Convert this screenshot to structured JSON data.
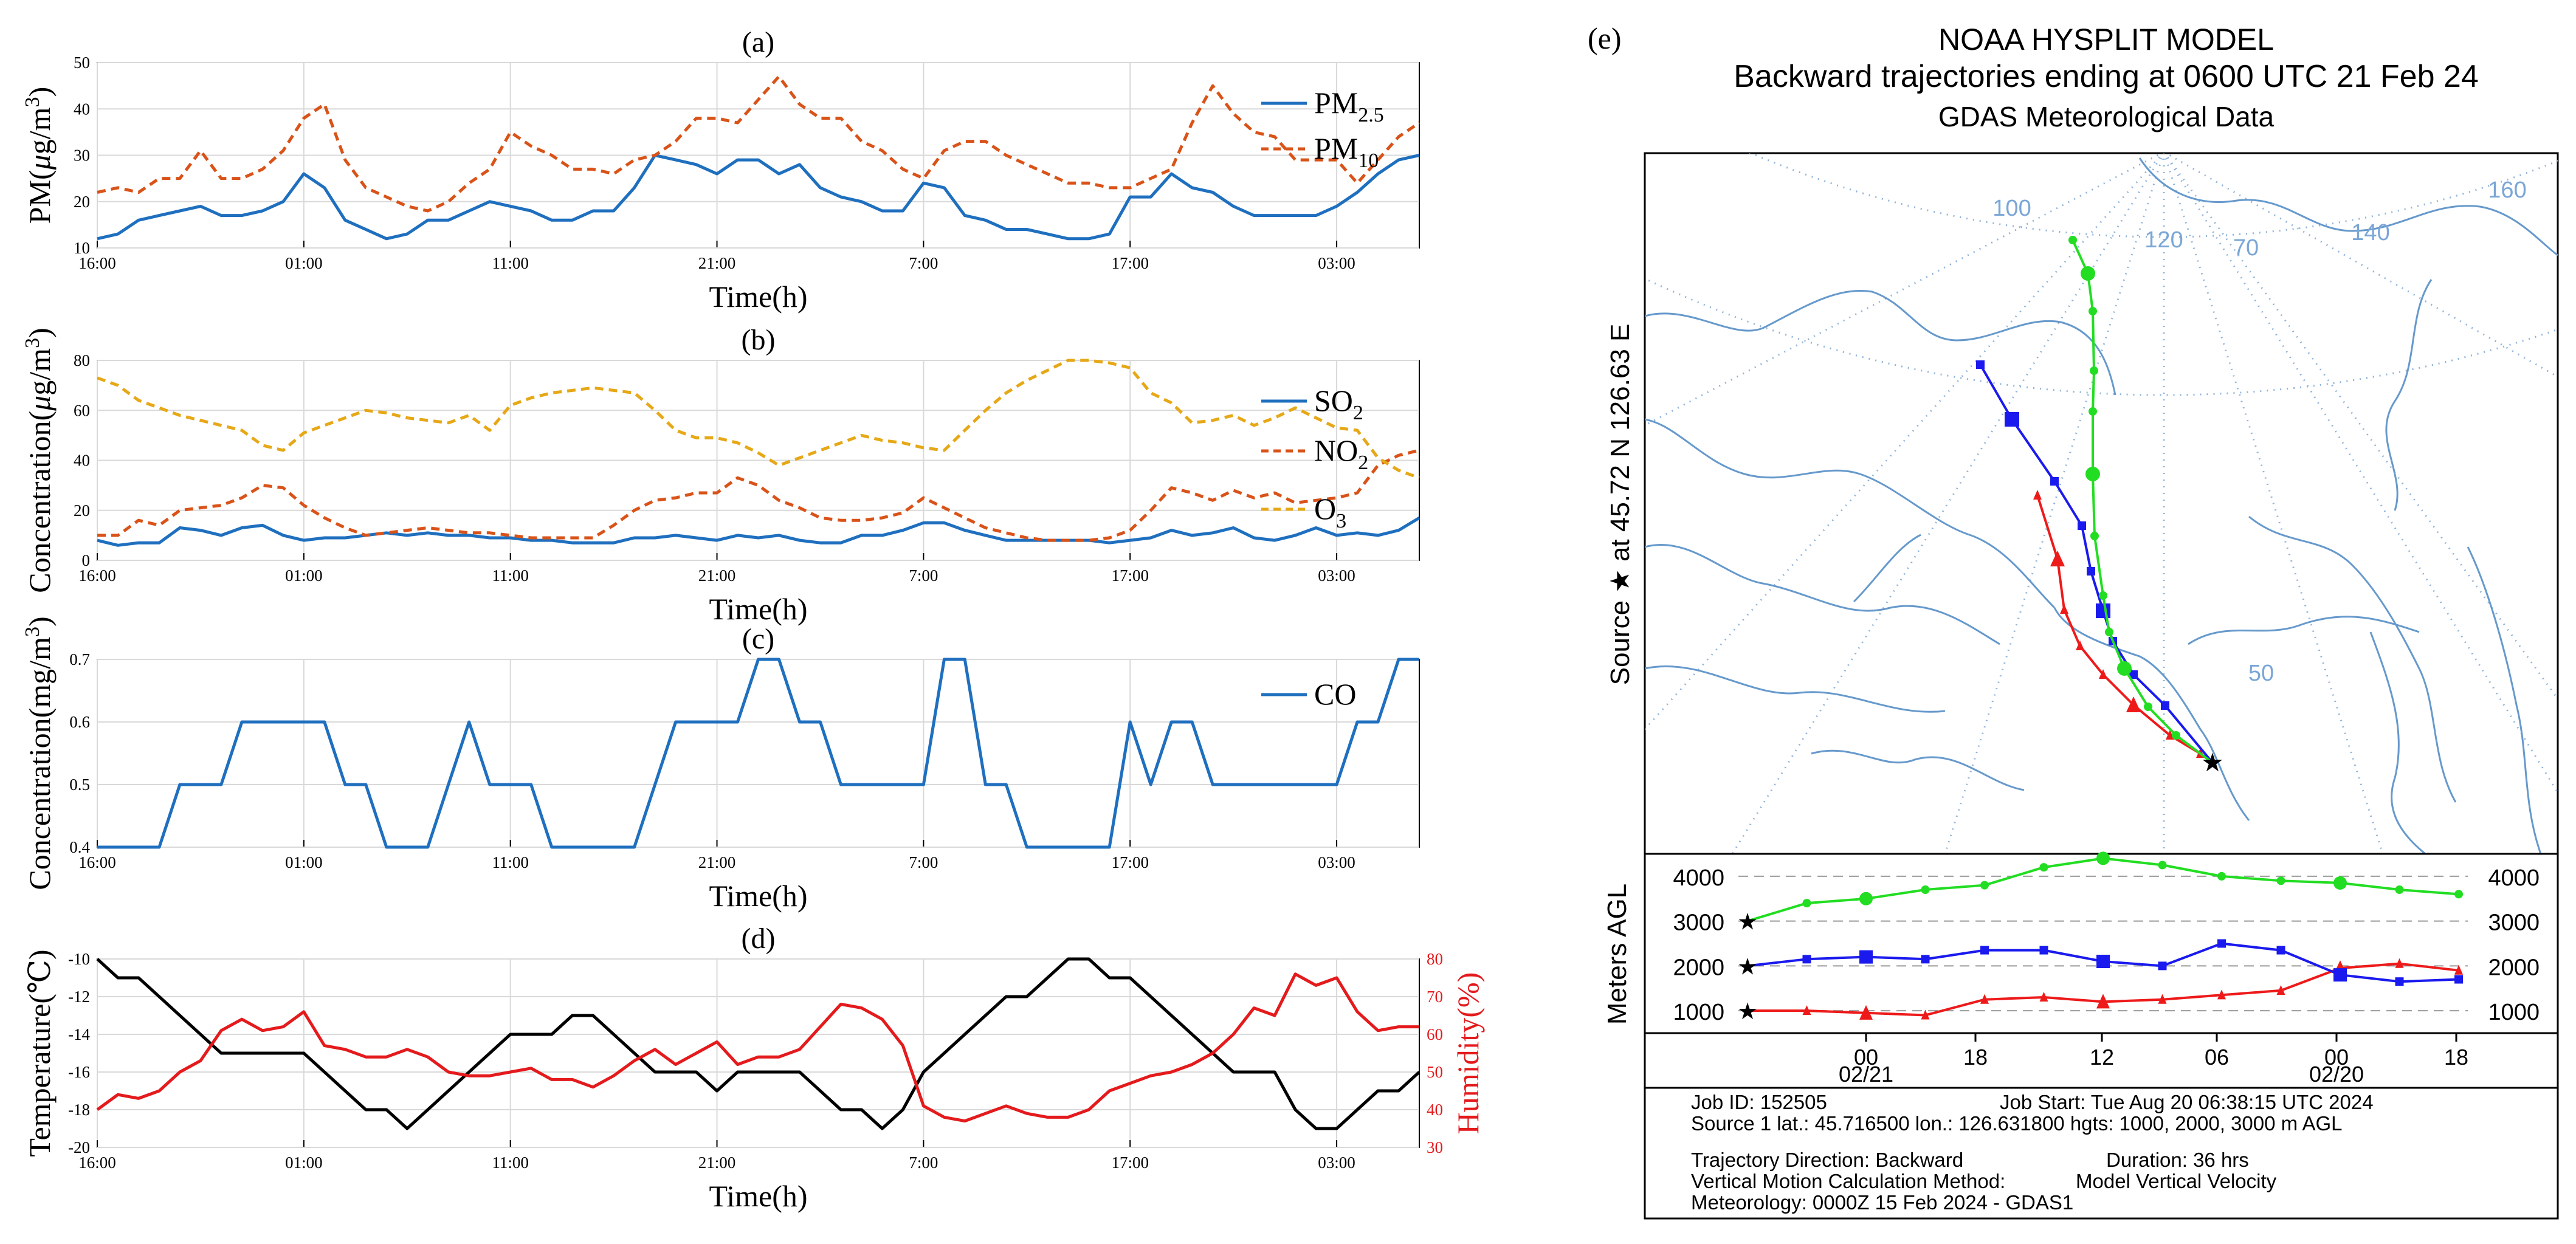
{
  "colors": {
    "blue": "#1f6fbf",
    "orange": "#d95319",
    "gold": "#e6a817",
    "black": "#000000",
    "red": "#e41a1c",
    "grid": "#d9d9d9",
    "green": "#22dd22",
    "trajBlue": "#1a1aee",
    "trajRed": "#ee1a1a",
    "map": "#6699cc"
  },
  "time_ticks": [
    "16:00",
    "01:00",
    "11:00",
    "21:00",
    "7:00",
    "17:00",
    "03:00"
  ],
  "chart_data": [
    {
      "id": "a",
      "type": "line",
      "panel_label": "(a)",
      "xlabel": "Time(h)",
      "ylabel": "PM(μg/m³)",
      "ylabel_parts": [
        "PM(",
        "μ",
        "g/m",
        "3",
        ")"
      ],
      "ylim": [
        10,
        50
      ],
      "yticks": [
        "10",
        "20",
        "30",
        "40",
        "50"
      ],
      "xticks": [
        "16:00",
        "01:00",
        "11:00",
        "21:00",
        "7:00",
        "17:00",
        "03:00"
      ],
      "series": [
        {
          "name": "PM2.5",
          "legend_base": "PM",
          "legend_sub": "2.5",
          "color": "#1f6fbf",
          "dash": "",
          "values": [
            12,
            13,
            16,
            17,
            18,
            19,
            17,
            17,
            18,
            20,
            26,
            23,
            16,
            14,
            12,
            13,
            16,
            16,
            18,
            20,
            19,
            18,
            16,
            16,
            18,
            18,
            23,
            30,
            29,
            28,
            26,
            29,
            29,
            26,
            28,
            23,
            21,
            20,
            18,
            18,
            24,
            23,
            17,
            16,
            14,
            14,
            13,
            12,
            12,
            13,
            21,
            21,
            26,
            23,
            22,
            19,
            17,
            17,
            17,
            17,
            19,
            22,
            26,
            29,
            30
          ]
        },
        {
          "name": "PM10",
          "legend_base": "PM",
          "legend_sub": "10",
          "color": "#d95319",
          "dash": "14,9",
          "values": [
            22,
            23,
            22,
            25,
            25,
            31,
            25,
            25,
            27,
            31,
            38,
            41,
            29,
            23,
            21,
            19,
            18,
            20,
            24,
            27,
            35,
            32,
            30,
            27,
            27,
            26,
            29,
            30,
            33,
            38,
            38,
            37,
            42,
            47,
            41,
            38,
            38,
            33,
            31,
            27,
            25,
            31,
            33,
            33,
            30,
            28,
            26,
            24,
            24,
            23,
            23,
            25,
            27,
            37,
            45,
            39,
            35,
            34,
            29,
            29,
            29,
            24,
            29,
            34,
            37
          ]
        }
      ]
    },
    {
      "id": "b",
      "type": "line",
      "panel_label": "(b)",
      "xlabel": "Time(h)",
      "ylabel": "Concentration(μg/m³)",
      "ylabel_parts": [
        "Concentration(",
        "μ",
        "g/m",
        "3",
        ")"
      ],
      "ylim": [
        0,
        80
      ],
      "yticks": [
        "0",
        "20",
        "40",
        "60",
        "80"
      ],
      "xticks": [
        "16:00",
        "01:00",
        "11:00",
        "21:00",
        "7:00",
        "17:00",
        "03:00"
      ],
      "series": [
        {
          "name": "SO2",
          "legend_base": "SO",
          "legend_sub": "2",
          "color": "#1f6fbf",
          "dash": "",
          "values": [
            8,
            6,
            7,
            7,
            13,
            12,
            10,
            13,
            14,
            10,
            8,
            9,
            9,
            10,
            11,
            10,
            11,
            10,
            10,
            9,
            9,
            8,
            8,
            7,
            7,
            7,
            9,
            9,
            10,
            9,
            8,
            10,
            9,
            10,
            8,
            7,
            7,
            10,
            10,
            12,
            15,
            15,
            12,
            10,
            8,
            8,
            8,
            8,
            8,
            7,
            8,
            9,
            12,
            10,
            11,
            13,
            9,
            8,
            10,
            13,
            10,
            11,
            10,
            12,
            17
          ]
        },
        {
          "name": "NO2",
          "legend_base": "NO",
          "legend_sub": "2",
          "color": "#d95319",
          "dash": "14,9",
          "values": [
            10,
            10,
            16,
            14,
            20,
            21,
            22,
            25,
            30,
            29,
            22,
            17,
            13,
            10,
            11,
            12,
            13,
            12,
            11,
            11,
            10,
            9,
            9,
            9,
            9,
            14,
            20,
            24,
            25,
            27,
            27,
            33,
            30,
            24,
            21,
            17,
            16,
            16,
            17,
            19,
            25,
            21,
            17,
            13,
            11,
            9,
            8,
            8,
            8,
            9,
            12,
            20,
            29,
            27,
            24,
            28,
            25,
            27,
            23,
            24,
            25,
            27,
            38,
            42,
            44
          ]
        },
        {
          "name": "O3",
          "legend_base": "O",
          "legend_sub": "3",
          "color": "#e6a817",
          "dash": "14,9",
          "values": [
            73,
            70,
            64,
            61,
            58,
            56,
            54,
            52,
            46,
            44,
            51,
            54,
            57,
            60,
            59,
            57,
            56,
            55,
            58,
            52,
            62,
            65,
            67,
            68,
            69,
            68,
            67,
            60,
            52,
            49,
            49,
            47,
            43,
            38,
            41,
            44,
            47,
            50,
            48,
            47,
            45,
            44,
            52,
            60,
            67,
            72,
            76,
            80,
            80,
            79,
            77,
            67,
            63,
            55,
            56,
            58,
            54,
            57,
            61,
            57,
            53,
            52,
            41,
            36,
            33
          ]
        }
      ]
    },
    {
      "id": "c",
      "type": "line",
      "panel_label": "(c)",
      "xlabel": "Time(h)",
      "ylabel": "Concentration(mg/m³)",
      "ylabel_parts": [
        "Concentration(mg/m",
        "3",
        ")"
      ],
      "ylim": [
        0.4,
        0.7
      ],
      "yticks": [
        "0.4",
        "0.5",
        "0.6",
        "0.7"
      ],
      "xticks": [
        "16:00",
        "01:00",
        "11:00",
        "21:00",
        "7:00",
        "17:00",
        "03:00"
      ],
      "series": [
        {
          "name": "CO",
          "legend_base": "CO",
          "legend_sub": "",
          "color": "#1f6fbf",
          "dash": "",
          "values": [
            0.4,
            0.4,
            0.4,
            0.4,
            0.5,
            0.5,
            0.5,
            0.6,
            0.6,
            0.6,
            0.6,
            0.6,
            0.5,
            0.5,
            0.4,
            0.4,
            0.4,
            0.5,
            0.6,
            0.5,
            0.5,
            0.5,
            0.4,
            0.4,
            0.4,
            0.4,
            0.4,
            0.5,
            0.6,
            0.6,
            0.6,
            0.6,
            0.7,
            0.7,
            0.6,
            0.6,
            0.5,
            0.5,
            0.5,
            0.5,
            0.5,
            0.7,
            0.7,
            0.5,
            0.5,
            0.4,
            0.4,
            0.4,
            0.4,
            0.4,
            0.6,
            0.5,
            0.6,
            0.6,
            0.5,
            0.5,
            0.5,
            0.5,
            0.5,
            0.5,
            0.5,
            0.6,
            0.6,
            0.7,
            0.7
          ]
        }
      ]
    },
    {
      "id": "d",
      "type": "line",
      "panel_label": "(d)",
      "xlabel": "Time(h)",
      "ylabel": "Temperature(℃)",
      "ylabel_right": "Humidity(%)",
      "ylim": [
        -20,
        -10
      ],
      "yticks": [
        "-20",
        "-18",
        "-16",
        "-14",
        "-12",
        "-10"
      ],
      "ylim_right": [
        30,
        80
      ],
      "yticks_right": [
        "30",
        "40",
        "50",
        "60",
        "70",
        "80"
      ],
      "xticks": [
        "16:00",
        "01:00",
        "11:00",
        "21:00",
        "7:00",
        "17:00",
        "03:00"
      ],
      "series": [
        {
          "name": "Temperature",
          "axis": "left",
          "color": "#000000",
          "values": [
            -10,
            -11,
            -11,
            -12,
            -13,
            -14,
            -15,
            -15,
            -15,
            -15,
            -15,
            -16,
            -17,
            -18,
            -18,
            -19,
            -18,
            -17,
            -16,
            -15,
            -14,
            -14,
            -14,
            -13,
            -13,
            -14,
            -15,
            -16,
            -16,
            -16,
            -17,
            -16,
            -16,
            -16,
            -16,
            -17,
            -18,
            -18,
            -19,
            -18,
            -16,
            -15,
            -14,
            -13,
            -12,
            -12,
            -11,
            -10,
            -10,
            -11,
            -11,
            -12,
            -13,
            -14,
            -15,
            -16,
            -16,
            -16,
            -18,
            -19,
            -19,
            -18,
            -17,
            -17,
            -16
          ]
        },
        {
          "name": "Humidity",
          "axis": "right",
          "color": "#e41a1c",
          "values": [
            40,
            44,
            43,
            45,
            50,
            53,
            61,
            64,
            61,
            62,
            66,
            57,
            56,
            54,
            54,
            56,
            54,
            50,
            49,
            49,
            50,
            51,
            48,
            48,
            46,
            49,
            53,
            56,
            52,
            55,
            58,
            52,
            54,
            54,
            56,
            62,
            68,
            67,
            64,
            57,
            41,
            38,
            37,
            39,
            41,
            39,
            38,
            38,
            40,
            45,
            47,
            49,
            50,
            52,
            55,
            60,
            67,
            65,
            76,
            73,
            75,
            66,
            61,
            62,
            62
          ]
        }
      ]
    },
    {
      "id": "e",
      "type": "line",
      "panel_label": "(e)",
      "title_lines": [
        "NOAA HYSPLIT MODEL",
        "Backward trajectories ending at 0600 UTC 21 Feb 24",
        "GDAS Meteorological Data"
      ],
      "source_label": [
        "Source",
        "★",
        "at",
        "45.72 N",
        "126.63 E"
      ],
      "map_labels": [
        "100",
        "120",
        "70",
        "140",
        "160",
        "50"
      ],
      "height_ylabel": "Meters AGL",
      "height_ticks": [
        "1000",
        "2000",
        "3000",
        "4000"
      ],
      "height_ylim": [
        500,
        4500
      ],
      "time_ticks": [
        "00",
        "18",
        "12",
        "06",
        "00",
        "18"
      ],
      "date_ticks": [
        "02/21",
        "02/20"
      ],
      "series": [
        {
          "name": "1000 m AGL",
          "color": "#ee1a1a",
          "marker": "triangle",
          "heights": [
            1000,
            1000,
            950,
            900,
            1250,
            1300,
            1200,
            1250,
            1350,
            1450,
            1950,
            2050,
            1900
          ]
        },
        {
          "name": "2000 m AGL",
          "color": "#1a1aee",
          "marker": "square",
          "heights": [
            2000,
            2150,
            2200,
            2150,
            2350,
            2350,
            2100,
            2000,
            2500,
            2350,
            1800,
            1650,
            1700
          ]
        },
        {
          "name": "3000 m AGL",
          "color": "#22dd22",
          "marker": "circle",
          "heights": [
            3000,
            3400,
            3500,
            3700,
            3800,
            4200,
            4400,
            4250,
            4000,
            3900,
            3850,
            3700,
            3600
          ]
        }
      ],
      "info": {
        "line1": "Job ID: 152505",
        "line1b": "Job Start: Tue Aug 20 06:38:15 UTC 2024",
        "line2": "Source 1 lat.: 45.716500  lon.: 126.631800  hgts: 1000, 2000, 3000 m AGL",
        "line3": "Trajectory Direction: Backward",
        "line3b": "Duration: 36 hrs",
        "line4": "Vertical Motion Calculation Method:",
        "line4b": "Model Vertical Velocity",
        "line5": "Meteorology: 0000Z 15 Feb 2024 - GDAS1"
      }
    }
  ]
}
